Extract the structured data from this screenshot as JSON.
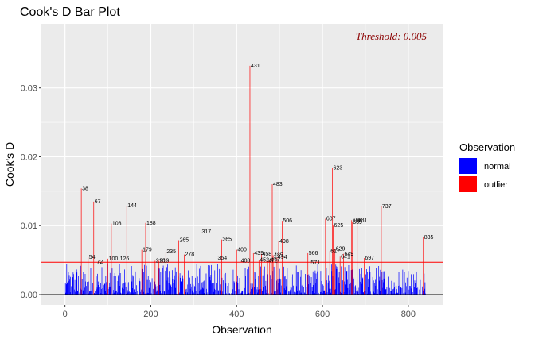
{
  "chart_data": {
    "type": "bar",
    "title": "Cook's D Bar Plot",
    "xlabel": "Observation",
    "ylabel": "Cook's D",
    "xlim": [
      -55,
      880
    ],
    "ylim": [
      -0.0015,
      0.0393
    ],
    "x_ticks": [
      0,
      200,
      400,
      600,
      800
    ],
    "x_tick_labels": [
      "0",
      "200",
      "400",
      "600",
      "800"
    ],
    "y_ticks": [
      0.0,
      0.01,
      0.02,
      0.03
    ],
    "y_tick_labels": [
      "0.00",
      "0.01",
      "0.02",
      "0.03"
    ],
    "threshold": 0.0047,
    "threshold_label": "Threshold: 0.005",
    "grid": true,
    "legend": {
      "title": "Observation",
      "position": "right",
      "entries": [
        {
          "label": "normal",
          "color": "#0000ff"
        },
        {
          "label": "outlier",
          "color": "#ff0000"
        }
      ]
    },
    "colors": {
      "normal": "#0000ff",
      "outlier": "#ff0000",
      "threshold": "#ff0000",
      "panel": "#ebebeb"
    },
    "outliers": [
      {
        "obs": 38,
        "value": 0.0154
      },
      {
        "obs": 54,
        "value": 0.0054
      },
      {
        "obs": 67,
        "value": 0.0135
      },
      {
        "obs": 72,
        "value": 0.0047
      },
      {
        "obs": 100,
        "value": 0.0052
      },
      {
        "obs": 108,
        "value": 0.0103
      },
      {
        "obs": 126,
        "value": 0.0052
      },
      {
        "obs": 144,
        "value": 0.0129
      },
      {
        "obs": 179,
        "value": 0.0065
      },
      {
        "obs": 188,
        "value": 0.0104
      },
      {
        "obs": 210,
        "value": 0.0049
      },
      {
        "obs": 219,
        "value": 0.0049
      },
      {
        "obs": 235,
        "value": 0.0062
      },
      {
        "obs": 265,
        "value": 0.0079
      },
      {
        "obs": 278,
        "value": 0.0058
      },
      {
        "obs": 317,
        "value": 0.0091
      },
      {
        "obs": 354,
        "value": 0.0053
      },
      {
        "obs": 365,
        "value": 0.008
      },
      {
        "obs": 400,
        "value": 0.0065
      },
      {
        "obs": 408,
        "value": 0.0049
      },
      {
        "obs": 431,
        "value": 0.0332
      },
      {
        "obs": 439,
        "value": 0.006
      },
      {
        "obs": 452,
        "value": 0.005
      },
      {
        "obs": 458,
        "value": 0.0059
      },
      {
        "obs": 472,
        "value": 0.0049
      },
      {
        "obs": 477,
        "value": 0.005
      },
      {
        "obs": 483,
        "value": 0.016
      },
      {
        "obs": 485,
        "value": 0.0057
      },
      {
        "obs": 494,
        "value": 0.0054
      },
      {
        "obs": 498,
        "value": 0.0077
      },
      {
        "obs": 506,
        "value": 0.0107
      },
      {
        "obs": 566,
        "value": 0.006
      },
      {
        "obs": 571,
        "value": 0.0046
      },
      {
        "obs": 607,
        "value": 0.011
      },
      {
        "obs": 617,
        "value": 0.0063
      },
      {
        "obs": 623,
        "value": 0.0184
      },
      {
        "obs": 625,
        "value": 0.01
      },
      {
        "obs": 629,
        "value": 0.0066
      },
      {
        "obs": 641,
        "value": 0.0055
      },
      {
        "obs": 649,
        "value": 0.0059
      },
      {
        "obs": 668,
        "value": 0.0108
      },
      {
        "obs": 669,
        "value": 0.0105
      },
      {
        "obs": 681,
        "value": 0.0108
      },
      {
        "obs": 697,
        "value": 0.0053
      },
      {
        "obs": 737,
        "value": 0.0128
      },
      {
        "obs": 835,
        "value": 0.0083
      }
    ]
  }
}
